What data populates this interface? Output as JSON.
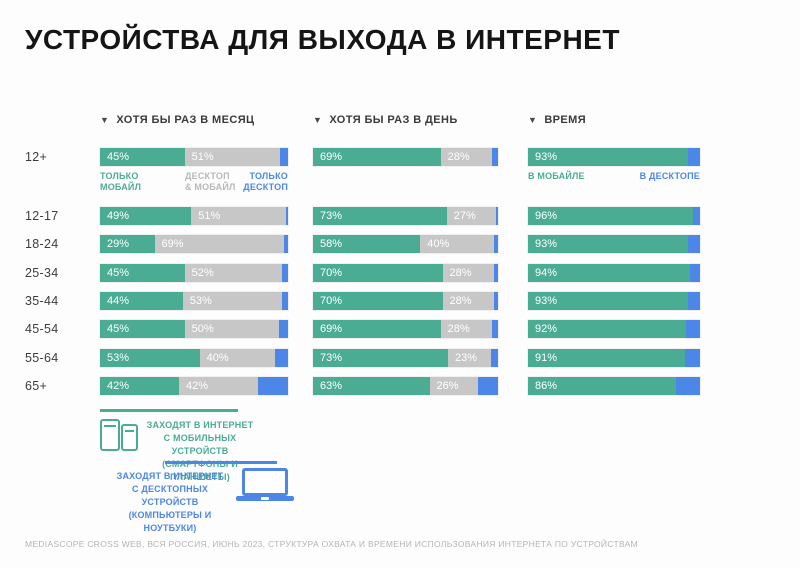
{
  "title": "УСТРОЙСТВА ДЛЯ ВЫХОДА В ИНТЕРНЕТ",
  "arrow": "▼",
  "columns": [
    {
      "label": "ХОТЯ БЫ РАЗ В МЕСЯЦ"
    },
    {
      "label": "ХОТЯ БЫ РАЗ В ДЕНЬ"
    },
    {
      "label": "ВРЕМЯ"
    }
  ],
  "segment_labels": {
    "mobile_only": "ТОЛЬКО\nМОБАЙЛ",
    "desktop_and_mobile": "ДЕСКТОП\n& МОБАЙЛ",
    "desktop_only": "ТОЛЬКО\nДЕСКТОП",
    "in_mobile": "В МОБАЙЛЕ",
    "in_desktop": "В ДЕСКТОПЕ"
  },
  "legend": {
    "mobile": {
      "text": "ЗАХОДЯТ В ИНТЕРНЕТ\nС МОБИЛЬНЫХ УСТРОЙСТВ\n(СМАРТФОНЫ И ПЛАНШЕТЫ)"
    },
    "desktop": {
      "text": "ЗАХОДЯТ В ИНТЕРНЕТ\nС ДЕСКТОПНЫХ УСТРОЙСТВ\n(КОМПЬЮТЕРЫ И НОУТБУКИ)"
    }
  },
  "footer": "MEDIASCOPE CROSS WEB, ВСЯ РОССИЯ, ИЮНЬ 2023, СТРУКТУРА ОХВАТА И ВРЕМЕНИ ИСПОЛЬЗОВАНИЯ ИНТЕРНЕТА ПО УСТРОЙСТВАМ",
  "colors": {
    "green": "#4BAC94",
    "gray": "#C7C7C7",
    "blue": "#4C86E6"
  },
  "chart_data": {
    "type": "bar",
    "subtype": "horizontal-stacked",
    "title": "УСТРОЙСТВА ДЛЯ ВЫХОДА В ИНТЕРНЕТ",
    "categories": [
      "12+",
      "12-17",
      "18-24",
      "25-34",
      "35-44",
      "45-54",
      "55-64",
      "65+"
    ],
    "unit": "%",
    "xlim": [
      0,
      100
    ],
    "groups": [
      {
        "label": "ХОТЯ БЫ РАЗ В МЕСЯЦ",
        "series": [
          {
            "name": "ТОЛЬКО МОБАЙЛ",
            "color_key": "green",
            "show_label": true,
            "values": [
              45,
              49,
              29,
              45,
              44,
              45,
              53,
              42
            ]
          },
          {
            "name": "ДЕСКТОП & МОБАЙЛ",
            "color_key": "gray",
            "show_label": true,
            "values": [
              51,
              51,
              69,
              52,
              53,
              50,
              40,
              42
            ]
          },
          {
            "name": "ТОЛЬКО ДЕСКТОП",
            "color_key": "blue",
            "show_label": false,
            "values": [
              4,
              1,
              2,
              3,
              3,
              5,
              7,
              16
            ]
          }
        ]
      },
      {
        "label": "ХОТЯ БЫ РАЗ В ДЕНЬ",
        "series": [
          {
            "name": "ТОЛЬКО МОБАЙЛ",
            "color_key": "green",
            "show_label": true,
            "values": [
              69,
              73,
              58,
              70,
              70,
              69,
              73,
              63
            ]
          },
          {
            "name": "ДЕСКТОП & МОБАЙЛ",
            "color_key": "gray",
            "show_label": true,
            "values": [
              28,
              27,
              40,
              28,
              28,
              28,
              23,
              26
            ]
          },
          {
            "name": "ТОЛЬКО ДЕСКТОП",
            "color_key": "blue",
            "show_label": false,
            "values": [
              3,
              1,
              2,
              2,
              2,
              3,
              4,
              11
            ]
          }
        ]
      },
      {
        "label": "ВРЕМЯ",
        "series": [
          {
            "name": "В МОБАЙЛЕ",
            "color_key": "green",
            "show_label": true,
            "values": [
              93,
              96,
              93,
              94,
              93,
              92,
              91,
              86
            ]
          },
          {
            "name": "В ДЕСКТОПЕ",
            "color_key": "blue",
            "show_label": false,
            "values": [
              7,
              4,
              7,
              6,
              7,
              8,
              9,
              14
            ]
          }
        ]
      }
    ]
  }
}
